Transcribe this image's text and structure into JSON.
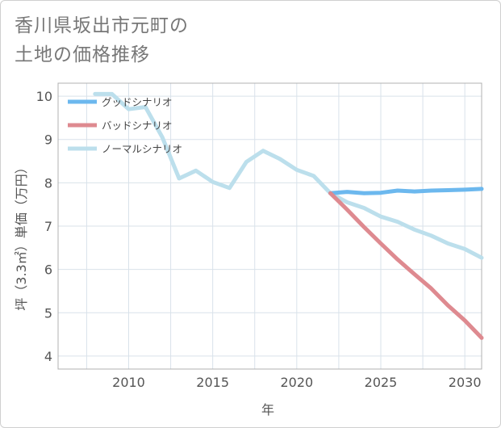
{
  "title_line1": "香川県坂出市元町の",
  "title_line2": "土地の価格推移",
  "chart_data": {
    "type": "line",
    "title": "香川県坂出市元町の土地の価格推移",
    "xlabel": "年",
    "ylabel": "坪（3.3㎡）単価（万円）",
    "xlim": [
      2005.8,
      2031
    ],
    "ylim": [
      3.7,
      10.3
    ],
    "xticks": [
      2010,
      2015,
      2020,
      2025,
      2030
    ],
    "yticks": [
      4,
      5,
      6,
      7,
      8,
      9,
      10
    ],
    "grid": true,
    "legend_position": "top-left",
    "series": [
      {
        "name": "グッドシナリオ",
        "color": "#6cb8ee",
        "x": [
          2022,
          2023,
          2024,
          2025,
          2026,
          2027,
          2028,
          2029,
          2030,
          2031
        ],
        "y": [
          7.76,
          7.79,
          7.76,
          7.77,
          7.82,
          7.8,
          7.82,
          7.83,
          7.84,
          7.86
        ]
      },
      {
        "name": "バッドシナリオ",
        "color": "#de8a90",
        "x": [
          2022,
          2023,
          2024,
          2025,
          2026,
          2027,
          2028,
          2029,
          2030,
          2031
        ],
        "y": [
          7.76,
          7.38,
          6.98,
          6.6,
          6.23,
          5.89,
          5.56,
          5.17,
          4.82,
          4.42
        ]
      },
      {
        "name": "ノーマルシナリオ",
        "color": "#bcdfec",
        "x": [
          2008,
          2009,
          2010,
          2011,
          2012,
          2013,
          2014,
          2015,
          2016,
          2017,
          2018,
          2019,
          2020,
          2021,
          2022,
          2023,
          2024,
          2025,
          2026,
          2027,
          2028,
          2029,
          2030,
          2031
        ],
        "y": [
          10.05,
          10.05,
          9.7,
          9.75,
          9.05,
          8.1,
          8.28,
          8.02,
          7.88,
          8.48,
          8.74,
          8.55,
          8.3,
          8.16,
          7.76,
          7.55,
          7.42,
          7.22,
          7.1,
          6.92,
          6.78,
          6.6,
          6.47,
          6.27
        ]
      }
    ]
  }
}
